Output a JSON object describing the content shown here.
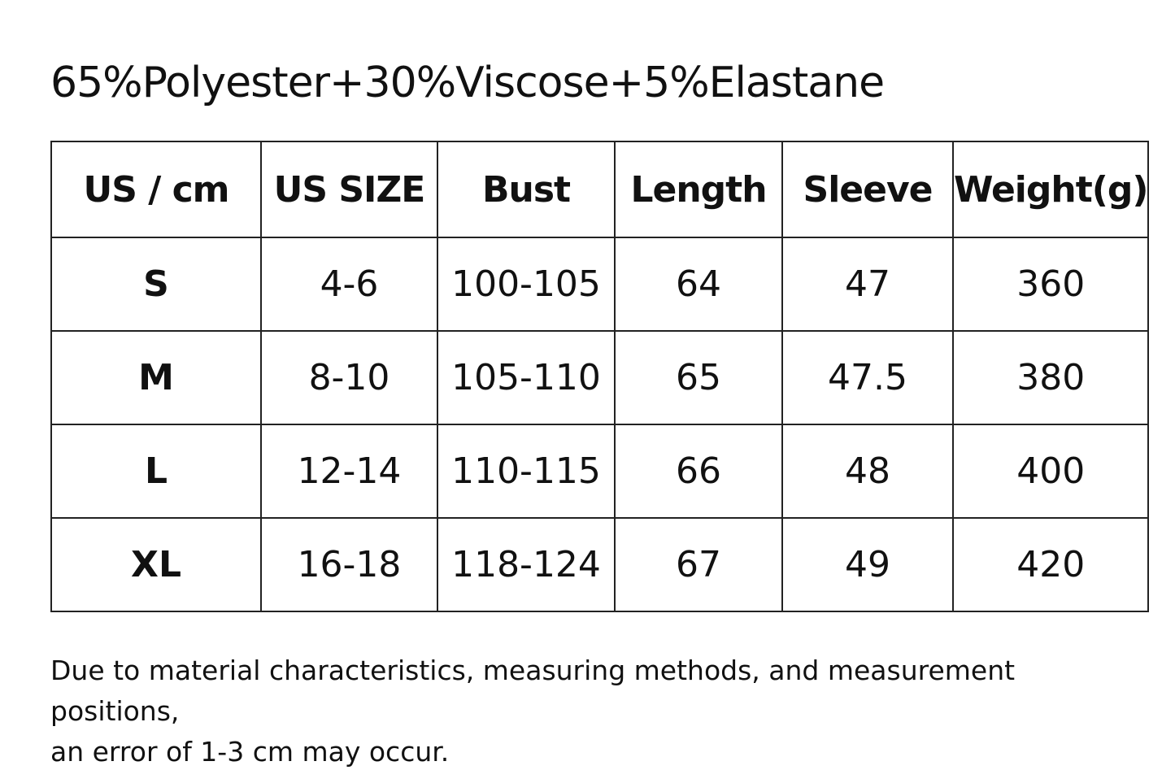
{
  "title": "65%Polyester+30%Viscose+5%Elastane",
  "table": {
    "headers": [
      "US / cm",
      "US SIZE",
      "Bust",
      "Length",
      "Sleeve",
      "Weight(g)"
    ],
    "rows": [
      [
        "S",
        "4-6",
        "100-105",
        "64",
        "47",
        "360"
      ],
      [
        "M",
        "8-10",
        "105-110",
        "65",
        "47.5",
        "380"
      ],
      [
        "L",
        "12-14",
        "110-115",
        "66",
        "48",
        "400"
      ],
      [
        "XL",
        "16-18",
        "118-124",
        "67",
        "49",
        "420"
      ]
    ]
  },
  "note": {
    "line1": "Due to material characteristics, measuring methods, and measurement positions,",
    "line2": "an error of 1-3 cm may occur."
  }
}
